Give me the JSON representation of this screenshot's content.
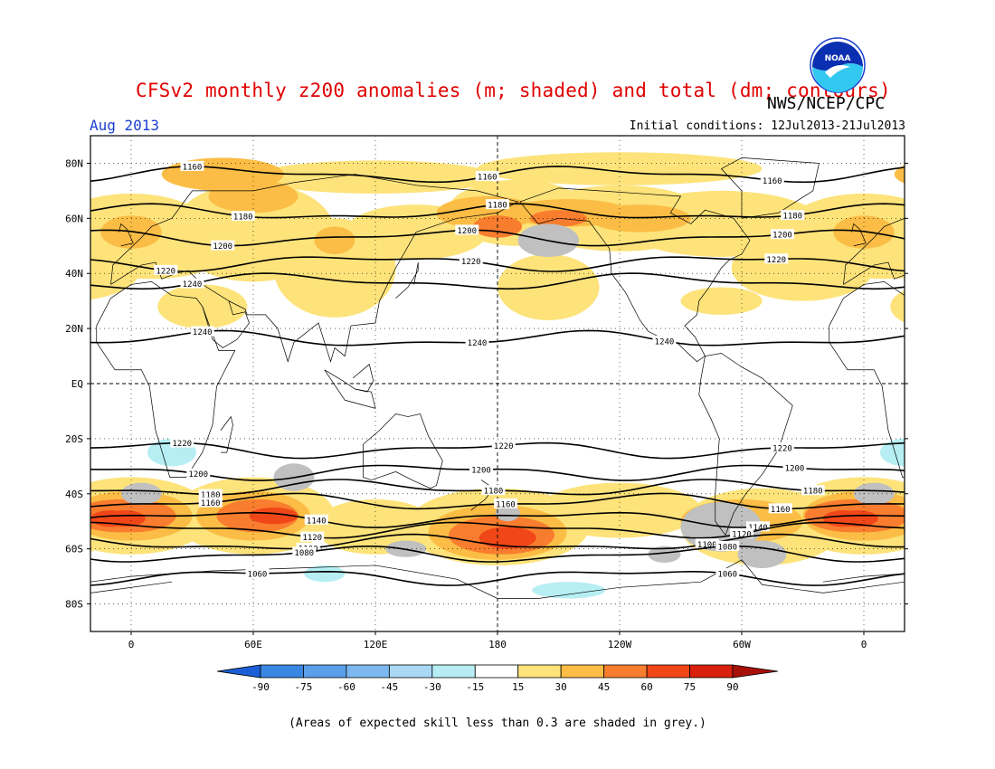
{
  "header": {
    "title": "CFSv2 monthly z200 anomalies (m; shaded) and total (dm; contours)",
    "agency": "NWS/NCEP/CPC",
    "period": "Aug 2013",
    "initial_conditions": "Initial conditions: 12Jul2013-21Jul2013"
  },
  "logo": {
    "text": "NOAA",
    "icon": "noaa-logo-icon"
  },
  "map": {
    "projection": "cylindrical-equidistant",
    "lon_range": [
      -20,
      380
    ],
    "lat_range": [
      -90,
      90
    ],
    "lat_ticks": [
      {
        "lat": 80,
        "label": "80N"
      },
      {
        "lat": 60,
        "label": "60N"
      },
      {
        "lat": 40,
        "label": "40N"
      },
      {
        "lat": 20,
        "label": "20N"
      },
      {
        "lat": 0,
        "label": "EQ"
      },
      {
        "lat": -20,
        "label": "20S"
      },
      {
        "lat": -40,
        "label": "40S"
      },
      {
        "lat": -60,
        "label": "60S"
      },
      {
        "lat": -80,
        "label": "80S"
      }
    ],
    "lon_ticks": [
      {
        "lon": 0,
        "label": "0"
      },
      {
        "lon": 60,
        "label": "60E"
      },
      {
        "lon": 120,
        "label": "120E"
      },
      {
        "lon": 180,
        "label": "180"
      },
      {
        "lon": 240,
        "label": "120W"
      },
      {
        "lon": 300,
        "label": "60W"
      },
      {
        "lon": 360,
        "label": "0"
      }
    ],
    "contours_dm": [
      {
        "level": "1160",
        "lat": 76,
        "labels": [
          {
            "lon": 30
          },
          {
            "lon": 175
          },
          {
            "lon": 315
          }
        ]
      },
      {
        "level": "1180",
        "lat": 62,
        "labels": [
          {
            "lon": 55
          },
          {
            "lon": 180
          },
          {
            "lon": 325
          }
        ]
      },
      {
        "level": "1200",
        "lat": 53,
        "labels": [
          {
            "lon": 45
          },
          {
            "lon": 165
          },
          {
            "lon": 320
          }
        ]
      },
      {
        "lat": 44,
        "level": "1220",
        "labels": [
          {
            "lon": 17
          },
          {
            "lon": 167
          },
          {
            "lon": 317
          }
        ]
      },
      {
        "lat": 37,
        "level": "1240",
        "labels": [
          {
            "lon": 30
          }
        ]
      },
      {
        "level": "1240",
        "lat": 16,
        "labels": [
          {
            "lon": 35
          },
          {
            "lon": 170
          },
          {
            "lon": 262
          }
        ]
      },
      {
        "level": "1220",
        "lat": -24,
        "labels": [
          {
            "lon": 25
          },
          {
            "lon": 183
          },
          {
            "lon": 320
          }
        ]
      },
      {
        "level": "1200",
        "lat": -32,
        "labels": [
          {
            "lon": 33
          },
          {
            "lon": 172
          },
          {
            "lon": 326
          }
        ]
      },
      {
        "level": "1180",
        "lat": -38,
        "labels": [
          {
            "lon": 39
          },
          {
            "lon": 178
          },
          {
            "lon": 335
          }
        ]
      },
      {
        "level": "1160",
        "lat": -43,
        "labels": [
          {
            "lon": 39
          },
          {
            "lon": 184
          },
          {
            "lon": 319
          }
        ]
      },
      {
        "level": "1140",
        "lat": -49,
        "labels": [
          {
            "lon": 91
          },
          {
            "lon": 308
          }
        ]
      },
      {
        "level": "1120",
        "lat": -53,
        "labels": [
          {
            "lon": 89
          },
          {
            "lon": 300
          }
        ]
      },
      {
        "level": "1100",
        "lat": -58,
        "labels": [
          {
            "lon": 87
          },
          {
            "lon": 283
          }
        ]
      },
      {
        "level": "1080",
        "lat": -62,
        "labels": [
          {
            "lon": 85
          },
          {
            "lon": 293
          }
        ]
      },
      {
        "level": "1060",
        "lat": -70,
        "labels": [
          {
            "lon": 62
          },
          {
            "lon": 293
          }
        ]
      }
    ],
    "anomaly_colors": {
      "pos15": "#fde37a",
      "pos30": "#fbbd45",
      "pos45": "#f97d2e",
      "pos60": "#f14718",
      "pos75": "#d8200d",
      "neg15": "#b6eef3",
      "low_skill": "#c0c0c0"
    }
  },
  "colorbar": {
    "ticks": [
      "-90",
      "-75",
      "-60",
      "-45",
      "-30",
      "-15",
      "15",
      "30",
      "45",
      "60",
      "75",
      "90"
    ],
    "colors": [
      "#1b5fd6",
      "#3a86e3",
      "#5b9ee9",
      "#7db7ef",
      "#a9d9f5",
      "#b6eef3",
      "#ffffff",
      "#fde37a",
      "#fbbd45",
      "#f97d2e",
      "#f14718",
      "#d8200d",
      "#a8100a"
    ]
  },
  "footer": {
    "note": "(Areas of expected skill less than 0.3 are shaded in grey.)"
  }
}
